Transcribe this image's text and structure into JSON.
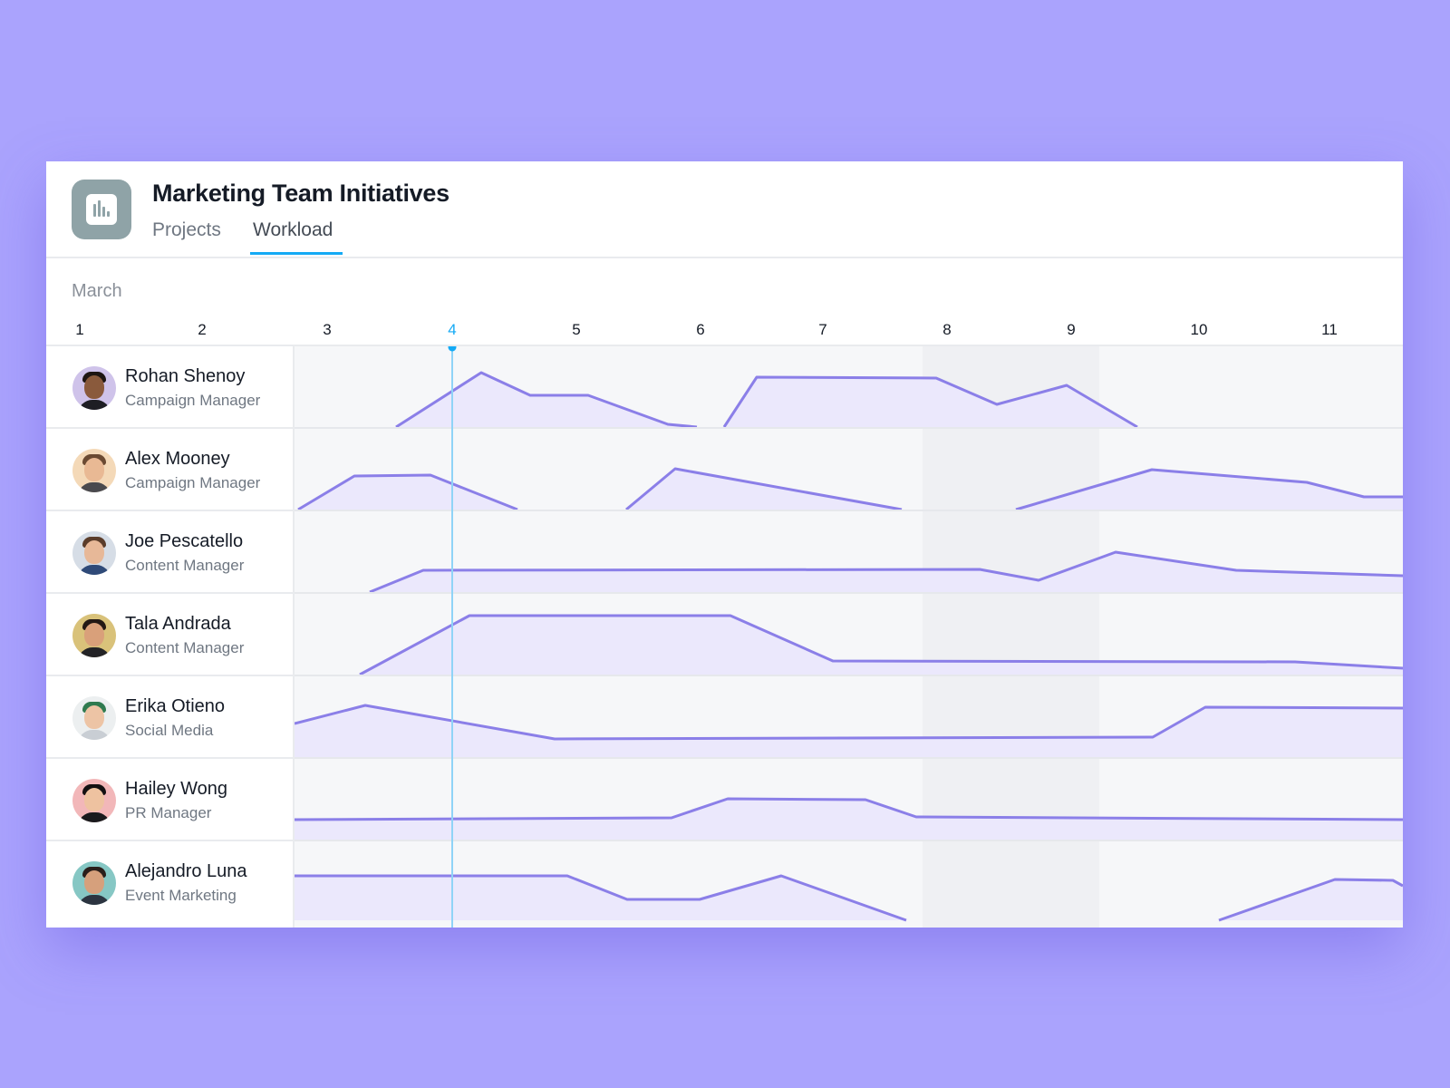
{
  "header": {
    "title": "Marketing Team Initiatives",
    "app_icon": "bar-chart-icon",
    "tabs": [
      {
        "label": "Projects",
        "active": false
      },
      {
        "label": "Workload",
        "active": true
      }
    ]
  },
  "timeline": {
    "month": "March",
    "days": [
      "1",
      "2",
      "3",
      "4",
      "5",
      "6",
      "7",
      "8",
      "9",
      "10",
      "11"
    ],
    "today": "4",
    "weekend_days": [
      "8",
      "9"
    ]
  },
  "colors": {
    "accent": "#14aaf5",
    "workload_line": "#8b7fe8",
    "workload_fill": "#ebe8fc",
    "background": "#aaa3fd"
  },
  "people": [
    {
      "name": "Rohan Shenoy",
      "role": "Campaign Manager",
      "avatar": "avatar-rohan"
    },
    {
      "name": "Alex Mooney",
      "role": "Campaign Manager",
      "avatar": "avatar-alex"
    },
    {
      "name": "Joe Pescatello",
      "role": "Content Manager",
      "avatar": "avatar-joe"
    },
    {
      "name": "Tala Andrada",
      "role": "Content Manager",
      "avatar": "avatar-tala"
    },
    {
      "name": "Erika Otieno",
      "role": "Social Media",
      "avatar": "avatar-erika"
    },
    {
      "name": "Hailey Wong",
      "role": "PR Manager",
      "avatar": "avatar-hailey"
    },
    {
      "name": "Alejandro Luna",
      "role": "Event Marketing",
      "avatar": "avatar-alejandro"
    }
  ]
}
